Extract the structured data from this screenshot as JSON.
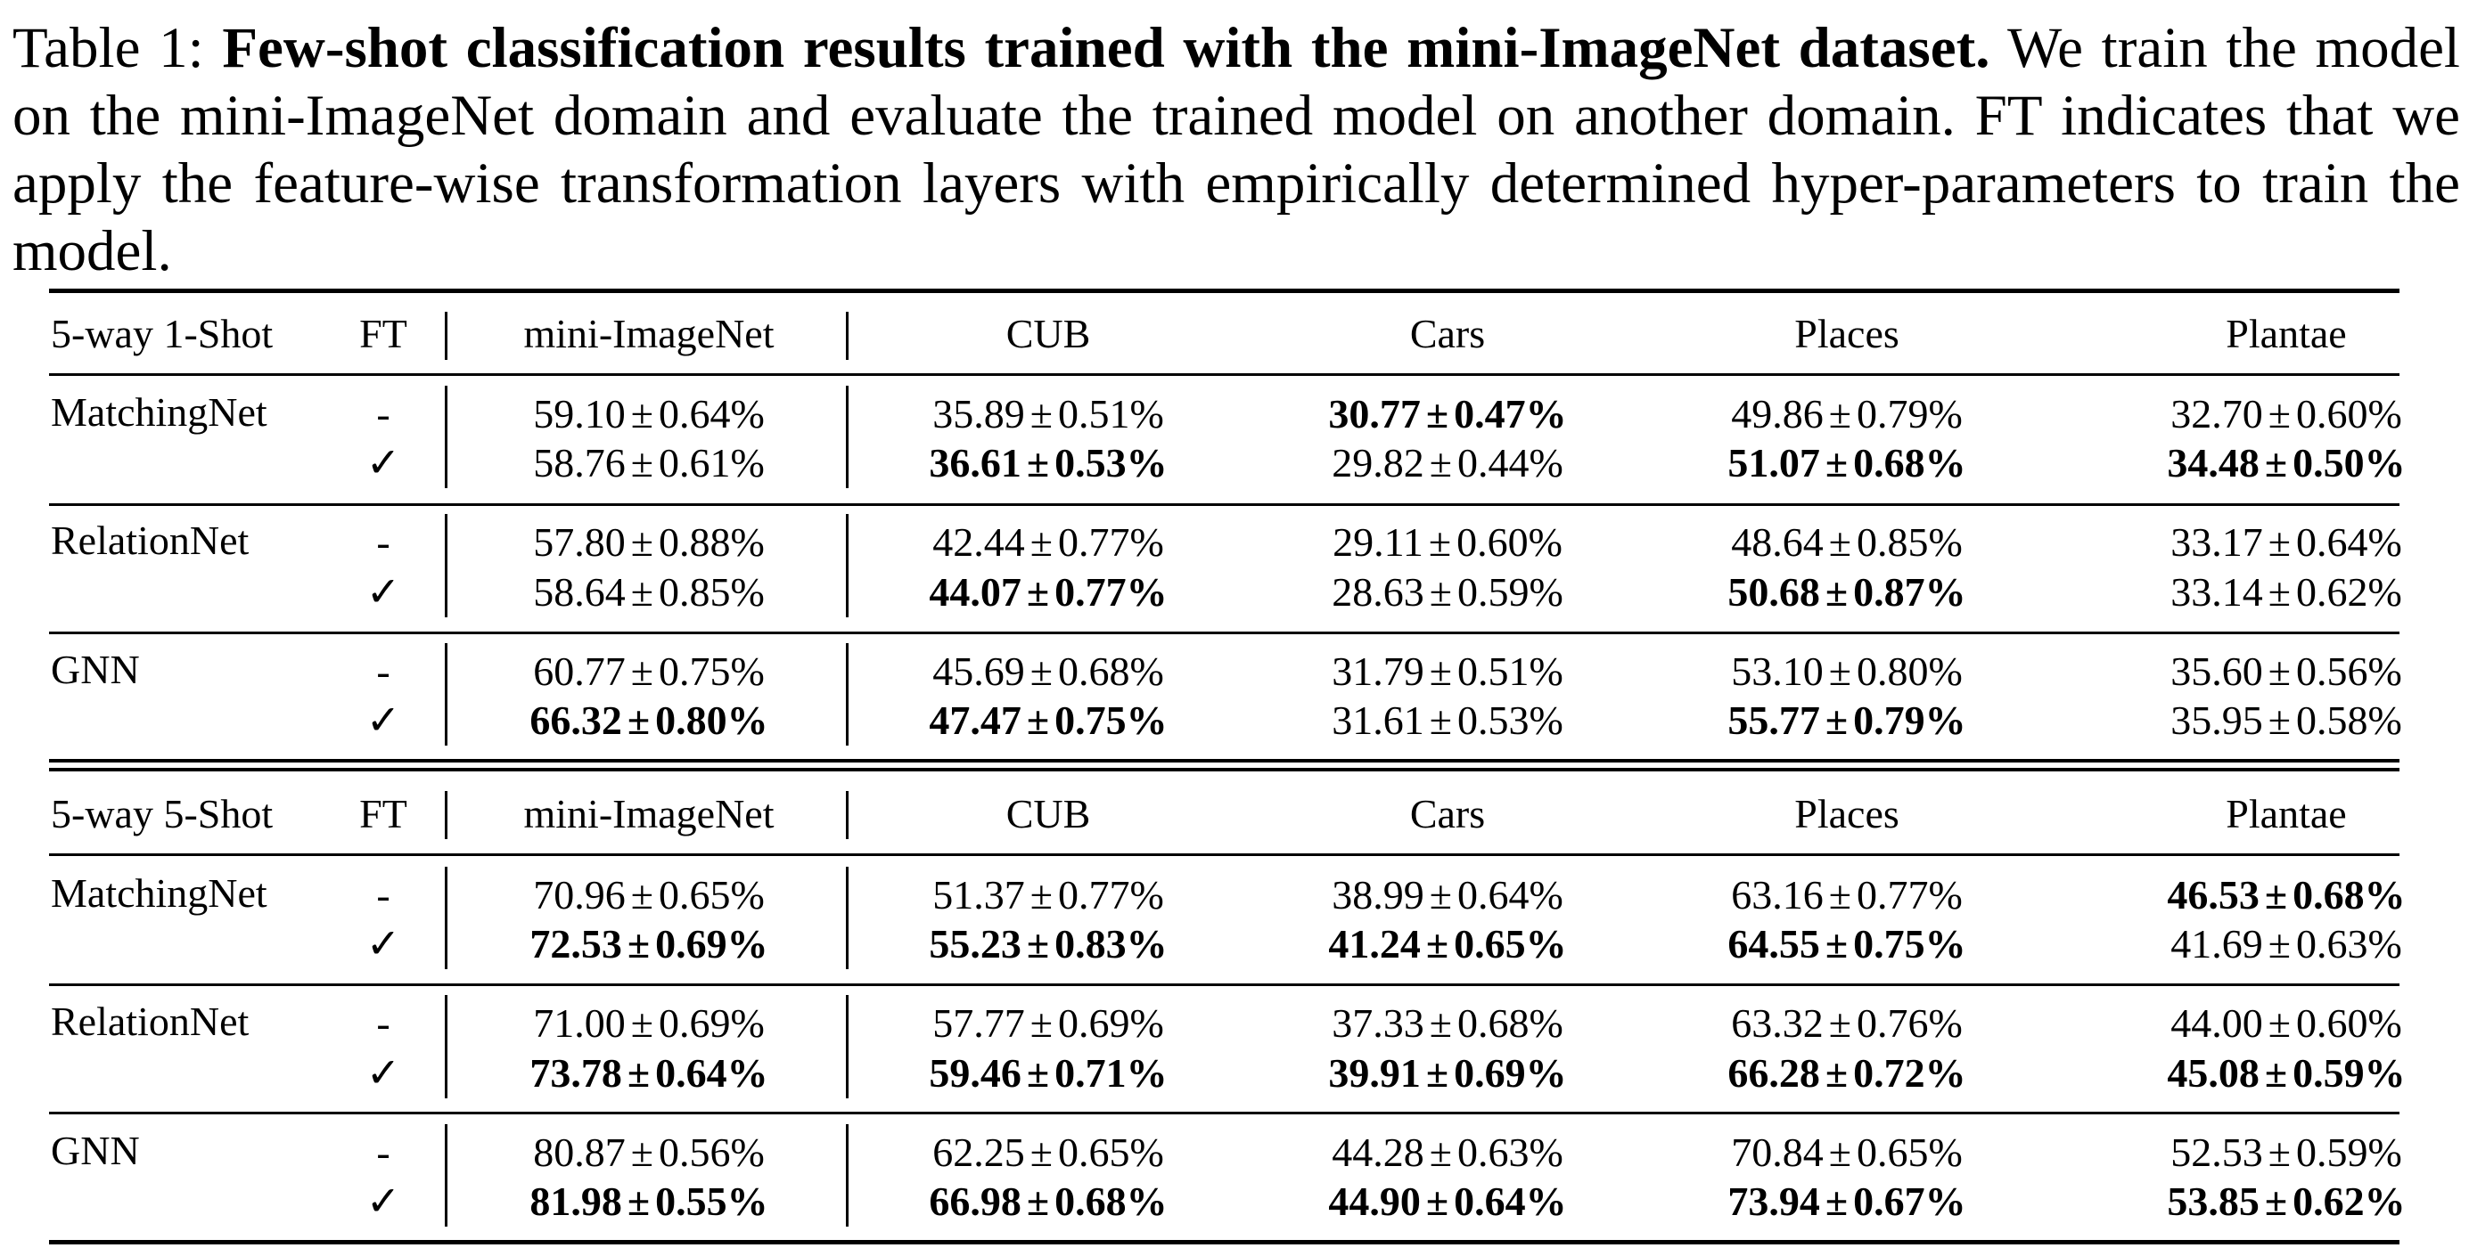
{
  "caption": {
    "label": "Table 1:",
    "title": "Few-shot classification results trained with the mini-ImageNet dataset.",
    "text": "We train the model on the mini-ImageNet domain and evaluate the trained model on another domain. FT indicates that we apply the feature-wise transformation layers with empirically determined hyper-parameters to train the model."
  },
  "table": {
    "columns": [
      "mini-ImageNet",
      "CUB",
      "Cars",
      "Places",
      "Plantae"
    ],
    "ft_header": "FT",
    "sections": [
      {
        "header": "5-way 1-Shot",
        "methods": [
          {
            "name": "MatchingNet",
            "rows": [
              {
                "ft": "-",
                "cells": [
                  {
                    "v": "59.10",
                    "e": "0.64%",
                    "b": false
                  },
                  {
                    "v": "35.89",
                    "e": "0.51%",
                    "b": false
                  },
                  {
                    "v": "30.77",
                    "e": "0.47%",
                    "b": true
                  },
                  {
                    "v": "49.86",
                    "e": "0.79%",
                    "b": false
                  },
                  {
                    "v": "32.70",
                    "e": "0.60%",
                    "b": false
                  }
                ]
              },
              {
                "ft": "✓",
                "cells": [
                  {
                    "v": "58.76",
                    "e": "0.61%",
                    "b": false
                  },
                  {
                    "v": "36.61",
                    "e": "0.53%",
                    "b": true
                  },
                  {
                    "v": "29.82",
                    "e": "0.44%",
                    "b": false
                  },
                  {
                    "v": "51.07",
                    "e": "0.68%",
                    "b": true
                  },
                  {
                    "v": "34.48",
                    "e": "0.50%",
                    "b": true
                  }
                ]
              }
            ]
          },
          {
            "name": "RelationNet",
            "rows": [
              {
                "ft": "-",
                "cells": [
                  {
                    "v": "57.80",
                    "e": "0.88%",
                    "b": false
                  },
                  {
                    "v": "42.44",
                    "e": "0.77%",
                    "b": false
                  },
                  {
                    "v": "29.11",
                    "e": "0.60%",
                    "b": false
                  },
                  {
                    "v": "48.64",
                    "e": "0.85%",
                    "b": false
                  },
                  {
                    "v": "33.17",
                    "e": "0.64%",
                    "b": false
                  }
                ]
              },
              {
                "ft": "✓",
                "cells": [
                  {
                    "v": "58.64",
                    "e": "0.85%",
                    "b": false
                  },
                  {
                    "v": "44.07",
                    "e": "0.77%",
                    "b": true
                  },
                  {
                    "v": "28.63",
                    "e": "0.59%",
                    "b": false
                  },
                  {
                    "v": "50.68",
                    "e": "0.87%",
                    "b": true
                  },
                  {
                    "v": "33.14",
                    "e": "0.62%",
                    "b": false
                  }
                ]
              }
            ]
          },
          {
            "name": "GNN",
            "rows": [
              {
                "ft": "-",
                "cells": [
                  {
                    "v": "60.77",
                    "e": "0.75%",
                    "b": false
                  },
                  {
                    "v": "45.69",
                    "e": "0.68%",
                    "b": false
                  },
                  {
                    "v": "31.79",
                    "e": "0.51%",
                    "b": false
                  },
                  {
                    "v": "53.10",
                    "e": "0.80%",
                    "b": false
                  },
                  {
                    "v": "35.60",
                    "e": "0.56%",
                    "b": false
                  }
                ]
              },
              {
                "ft": "✓",
                "cells": [
                  {
                    "v": "66.32",
                    "e": "0.80%",
                    "b": true
                  },
                  {
                    "v": "47.47",
                    "e": "0.75%",
                    "b": true
                  },
                  {
                    "v": "31.61",
                    "e": "0.53%",
                    "b": false
                  },
                  {
                    "v": "55.77",
                    "e": "0.79%",
                    "b": true
                  },
                  {
                    "v": "35.95",
                    "e": "0.58%",
                    "b": false
                  }
                ]
              }
            ]
          }
        ]
      },
      {
        "header": "5-way 5-Shot",
        "methods": [
          {
            "name": "MatchingNet",
            "rows": [
              {
                "ft": "-",
                "cells": [
                  {
                    "v": "70.96",
                    "e": "0.65%",
                    "b": false
                  },
                  {
                    "v": "51.37",
                    "e": "0.77%",
                    "b": false
                  },
                  {
                    "v": "38.99",
                    "e": "0.64%",
                    "b": false
                  },
                  {
                    "v": "63.16",
                    "e": "0.77%",
                    "b": false
                  },
                  {
                    "v": "46.53",
                    "e": "0.68%",
                    "b": true
                  }
                ]
              },
              {
                "ft": "✓",
                "cells": [
                  {
                    "v": "72.53",
                    "e": "0.69%",
                    "b": true
                  },
                  {
                    "v": "55.23",
                    "e": "0.83%",
                    "b": true
                  },
                  {
                    "v": "41.24",
                    "e": "0.65%",
                    "b": true
                  },
                  {
                    "v": "64.55",
                    "e": "0.75%",
                    "b": true
                  },
                  {
                    "v": "41.69",
                    "e": "0.63%",
                    "b": false
                  }
                ]
              }
            ]
          },
          {
            "name": "RelationNet",
            "rows": [
              {
                "ft": "-",
                "cells": [
                  {
                    "v": "71.00",
                    "e": "0.69%",
                    "b": false
                  },
                  {
                    "v": "57.77",
                    "e": "0.69%",
                    "b": false
                  },
                  {
                    "v": "37.33",
                    "e": "0.68%",
                    "b": false
                  },
                  {
                    "v": "63.32",
                    "e": "0.76%",
                    "b": false
                  },
                  {
                    "v": "44.00",
                    "e": "0.60%",
                    "b": false
                  }
                ]
              },
              {
                "ft": "✓",
                "cells": [
                  {
                    "v": "73.78",
                    "e": "0.64%",
                    "b": true
                  },
                  {
                    "v": "59.46",
                    "e": "0.71%",
                    "b": true
                  },
                  {
                    "v": "39.91",
                    "e": "0.69%",
                    "b": true
                  },
                  {
                    "v": "66.28",
                    "e": "0.72%",
                    "b": true
                  },
                  {
                    "v": "45.08",
                    "e": "0.59%",
                    "b": true
                  }
                ]
              }
            ]
          },
          {
            "name": "GNN",
            "rows": [
              {
                "ft": "-",
                "cells": [
                  {
                    "v": "80.87",
                    "e": "0.56%",
                    "b": false
                  },
                  {
                    "v": "62.25",
                    "e": "0.65%",
                    "b": false
                  },
                  {
                    "v": "44.28",
                    "e": "0.63%",
                    "b": false
                  },
                  {
                    "v": "70.84",
                    "e": "0.65%",
                    "b": false
                  },
                  {
                    "v": "52.53",
                    "e": "0.59%",
                    "b": false
                  }
                ]
              },
              {
                "ft": "✓",
                "cells": [
                  {
                    "v": "81.98",
                    "e": "0.55%",
                    "b": true
                  },
                  {
                    "v": "66.98",
                    "e": "0.68%",
                    "b": true
                  },
                  {
                    "v": "44.90",
                    "e": "0.64%",
                    "b": true
                  },
                  {
                    "v": "73.94",
                    "e": "0.67%",
                    "b": true
                  },
                  {
                    "v": "53.85",
                    "e": "0.62%",
                    "b": true
                  }
                ]
              }
            ]
          }
        ]
      }
    ]
  }
}
